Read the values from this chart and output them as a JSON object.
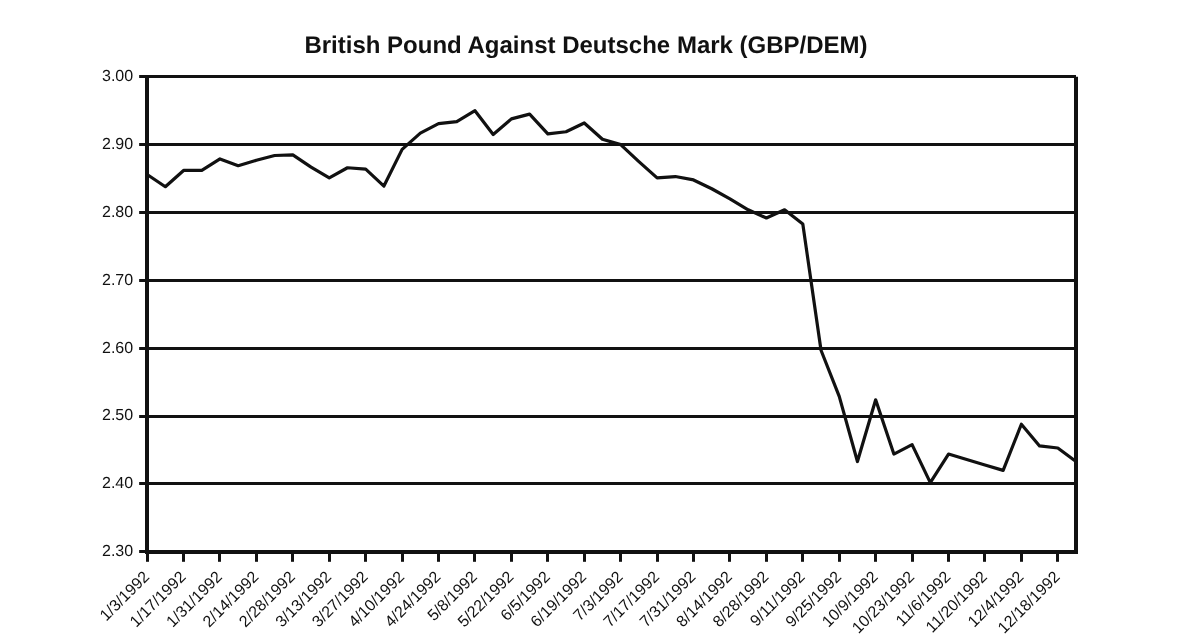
{
  "chart_data": {
    "type": "line",
    "title": "British Pound Against Deutsche Mark (GBP/DEM)",
    "categories": [
      "1/3/1992",
      null,
      "1/17/1992",
      null,
      "1/31/1992",
      null,
      "2/14/1992",
      null,
      "2/28/1992",
      null,
      "3/13/1992",
      null,
      "3/27/1992",
      null,
      "4/10/1992",
      null,
      "4/24/1992",
      null,
      "5/8/1992",
      null,
      "5/22/1992",
      null,
      "6/5/1992",
      null,
      "6/19/1992",
      null,
      "7/3/1992",
      null,
      "7/17/1992",
      null,
      "7/31/1992",
      null,
      "8/14/1992",
      null,
      "8/28/1992",
      null,
      "9/11/1992",
      null,
      "9/25/1992",
      null,
      "10/9/1992",
      null,
      "10/23/1992",
      null,
      "11/6/1992",
      null,
      "11/20/1992",
      null,
      "12/4/1992",
      null,
      "12/18/1992",
      null
    ],
    "series": [
      {
        "color": "#111111",
        "values": [
          2.856,
          2.838,
          2.862,
          2.862,
          2.879,
          2.869,
          2.877,
          2.884,
          2.885,
          2.867,
          2.851,
          2.866,
          2.864,
          2.839,
          2.893,
          2.917,
          2.931,
          2.934,
          2.95,
          2.915,
          2.938,
          2.945,
          2.916,
          2.919,
          2.932,
          2.908,
          2.9,
          2.875,
          2.851,
          2.853,
          2.848,
          2.835,
          2.82,
          2.804,
          2.792,
          2.804,
          2.783,
          2.597,
          2.529,
          2.433,
          2.524,
          2.444,
          2.458,
          2.402,
          2.444,
          2.436,
          2.428,
          2.42,
          2.488,
          2.456,
          2.453,
          2.433
        ]
      }
    ],
    "ylim": [
      2.3,
      3.0
    ],
    "yticks": [
      {
        "value": 2.3,
        "label": "2.30"
      },
      {
        "value": 2.4,
        "label": "2.40"
      },
      {
        "value": 2.5,
        "label": "2.50"
      },
      {
        "value": 2.6,
        "label": "2.60"
      },
      {
        "value": 2.7,
        "label": "2.70"
      },
      {
        "value": 2.8,
        "label": "2.80"
      },
      {
        "value": 2.9,
        "label": "2.90"
      },
      {
        "value": 3.0,
        "label": "3.00"
      }
    ],
    "grid": "y",
    "legend": false,
    "marker": "none",
    "line_style": "solid"
  }
}
